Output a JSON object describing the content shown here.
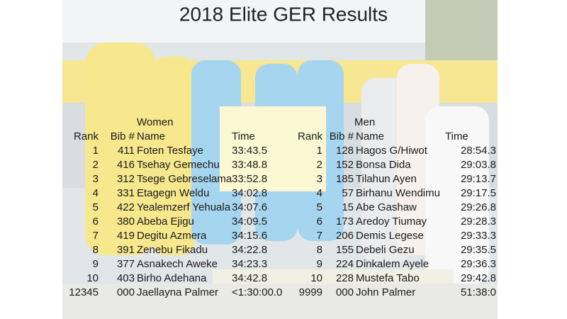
{
  "title": "2018 Elite GER Results",
  "women": {
    "label": "Women",
    "headers": [
      "Rank",
      "Bib #",
      "Name",
      "Time"
    ],
    "rows": [
      [
        "1",
        "411",
        "Foten Tesfaye",
        "33:43.5"
      ],
      [
        "2",
        "416",
        "Tsehay Gemechu",
        "33:48.8"
      ],
      [
        "3",
        "312",
        "Tsege Gebreselama",
        "33:52.8"
      ],
      [
        "4",
        "331",
        "Etagegn Weldu",
        "34:02.8"
      ],
      [
        "5",
        "422",
        "Yealemzerf Yehuala",
        "34:07.6"
      ],
      [
        "6",
        "380",
        "Abeba Ejigu",
        "34:09.5"
      ],
      [
        "7",
        "419",
        "Degitu Azmera",
        "34:15.6"
      ],
      [
        "8",
        "391",
        "Zenebu Fikadu",
        "34:22.8"
      ],
      [
        "9",
        "377",
        "Asnakech Aweke",
        "34:23.3"
      ],
      [
        "10",
        "403",
        "Birho Adehana",
        "34:42.8"
      ],
      [
        "12345",
        "000",
        "Jaellayna Palmer",
        "<1:30:00.0"
      ]
    ]
  },
  "men": {
    "label": "Men",
    "headers": [
      "Rank",
      "Bib #",
      "Name",
      "Time"
    ],
    "rows": [
      [
        "1",
        "128",
        "Hagos G/Hiwot",
        "28:54.3"
      ],
      [
        "2",
        "152",
        "Bonsa Dida",
        "29:03.8"
      ],
      [
        "3",
        "185",
        "Tilahun Ayen",
        "29:13.7"
      ],
      [
        "4",
        "57",
        "Birhanu Wendimu",
        "29:17.5"
      ],
      [
        "5",
        "15",
        "Abe Gashaw",
        "29:26.8"
      ],
      [
        "6",
        "173",
        "Aredoy Tiumay",
        "29:28.3"
      ],
      [
        "7",
        "206",
        "Demis Legese",
        "29:33.3"
      ],
      [
        "8",
        "155",
        "Debeli Gezu",
        "29:35.5"
      ],
      [
        "9",
        "224",
        "Dinkalem Ayele",
        "29:36.3"
      ],
      [
        "10",
        "228",
        "Mustefa Tabo",
        "29:42.8"
      ],
      [
        "9999",
        "000",
        "John Palmer",
        "51:38:0"
      ]
    ]
  }
}
